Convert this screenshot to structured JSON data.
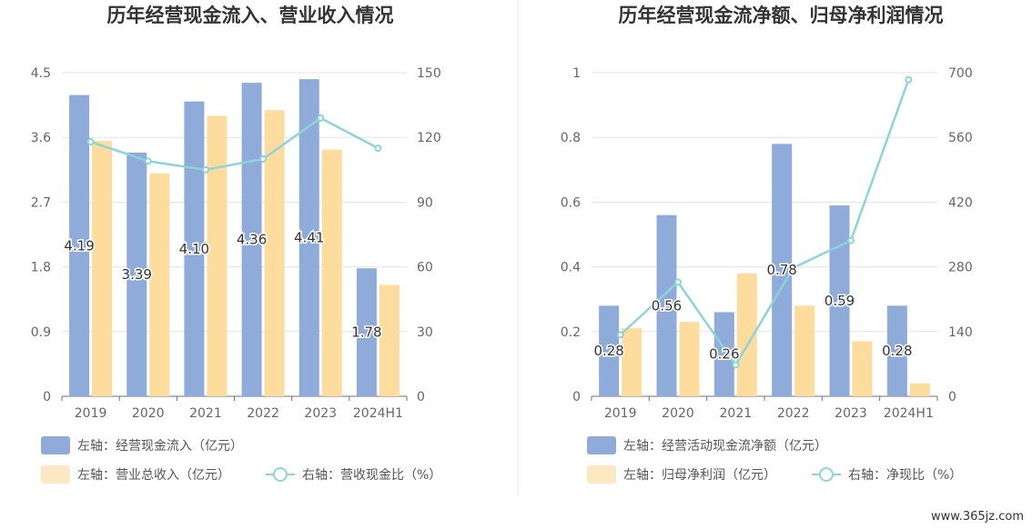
{
  "watermark": "www.365jz.com",
  "chart_data": [
    {
      "type": "bar",
      "title": "历年经营现金流入、营业收入情况",
      "categories": [
        "2019",
        "2020",
        "2021",
        "2022",
        "2023",
        "2024H1"
      ],
      "y_left": {
        "ticks": [
          "0",
          "0.9",
          "1.8",
          "2.7",
          "3.6",
          "4.5"
        ],
        "ylim": [
          0,
          4.5
        ]
      },
      "y_right": {
        "ticks": [
          "0",
          "30",
          "60",
          "90",
          "120",
          "150"
        ],
        "ylim": [
          0,
          150
        ]
      },
      "series": [
        {
          "name": "左轴：经营现金流入（亿元）",
          "kind": "bar",
          "axis": "left",
          "color": "#8eabd9",
          "values": [
            4.19,
            3.39,
            4.1,
            4.36,
            4.41,
            1.78
          ],
          "labels": [
            "4.19",
            "3.39",
            "4.10",
            "4.36",
            "4.41",
            "1.78"
          ]
        },
        {
          "name": "左轴：营业总收入（亿元）",
          "kind": "bar",
          "axis": "left",
          "color": "#fddc9e",
          "values": [
            3.55,
            3.1,
            3.9,
            3.98,
            3.43,
            1.55
          ]
        },
        {
          "name": "右轴：营收现金比（%）",
          "kind": "line",
          "axis": "right",
          "color": "#8cd4d9",
          "values": [
            118,
            109,
            105,
            110,
            129,
            115
          ]
        }
      ]
    },
    {
      "type": "bar",
      "title": "历年经营现金流净额、归母净利润情况",
      "categories": [
        "2019",
        "2020",
        "2021",
        "2022",
        "2023",
        "2024H1"
      ],
      "y_left": {
        "ticks": [
          "0",
          "0.2",
          "0.4",
          "0.6",
          "0.8",
          "1"
        ],
        "ylim": [
          0,
          1
        ]
      },
      "y_right": {
        "ticks": [
          "0",
          "140",
          "280",
          "420",
          "560",
          "700"
        ],
        "ylim": [
          0,
          700
        ]
      },
      "series": [
        {
          "name": "左轴：经营活动现金流净额（亿元）",
          "kind": "bar",
          "axis": "left",
          "color": "#8eabd9",
          "values": [
            0.28,
            0.56,
            0.26,
            0.78,
            0.59,
            0.28
          ],
          "labels": [
            "0.28",
            "0.56",
            "0.26",
            "0.78",
            "0.59",
            "0.28"
          ]
        },
        {
          "name": "左轴：归母净利润（亿元）",
          "kind": "bar",
          "axis": "left",
          "color": "#fddc9e",
          "values": [
            0.21,
            0.23,
            0.38,
            0.28,
            0.17,
            0.04
          ]
        },
        {
          "name": "右轴：净现比（%）",
          "kind": "line",
          "axis": "right",
          "color": "#8cd4d9",
          "values": [
            133,
            247,
            68,
            278,
            337,
            685
          ]
        }
      ]
    }
  ]
}
